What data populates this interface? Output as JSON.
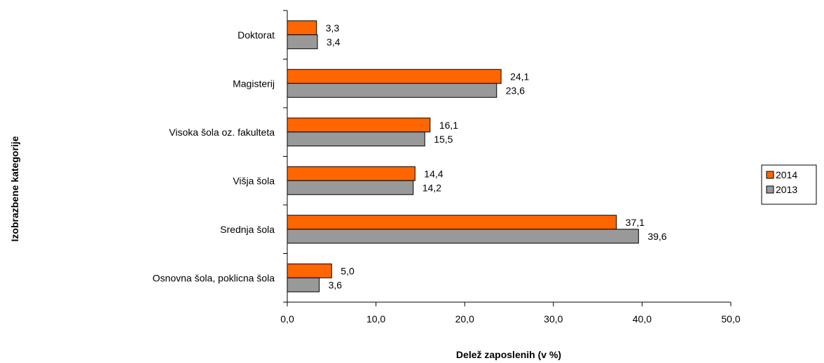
{
  "chart_data": {
    "type": "bar",
    "orientation": "horizontal",
    "categories": [
      "Doktorat",
      "Magisterij",
      "Visoka šola oz. fakulteta",
      "Višja šola",
      "Srednja šola",
      "Osnovna šola, poklicna šola"
    ],
    "series": [
      {
        "name": "2014",
        "color": "#FF6600",
        "values": [
          3.3,
          24.1,
          16.1,
          14.4,
          37.1,
          5.0
        ],
        "labels": [
          "3,3",
          "24,1",
          "16,1",
          "14,4",
          "37,1",
          "5,0"
        ]
      },
      {
        "name": "2013",
        "color": "#999999",
        "values": [
          3.4,
          23.6,
          15.5,
          14.2,
          39.6,
          3.6
        ],
        "labels": [
          "3,4",
          "23,6",
          "15,5",
          "14,2",
          "39,6",
          "3,6"
        ]
      }
    ],
    "xlabel": "Delež zaposlenih (v %)",
    "ylabel": "Izobrazbene kategorije",
    "xlim": [
      0,
      50
    ],
    "xticks": [
      0,
      10,
      20,
      30,
      40,
      50
    ],
    "xtick_labels": [
      "0,0",
      "10,0",
      "20,0",
      "30,0",
      "40,0",
      "50,0"
    ],
    "grid": false,
    "legend_position": "right"
  }
}
